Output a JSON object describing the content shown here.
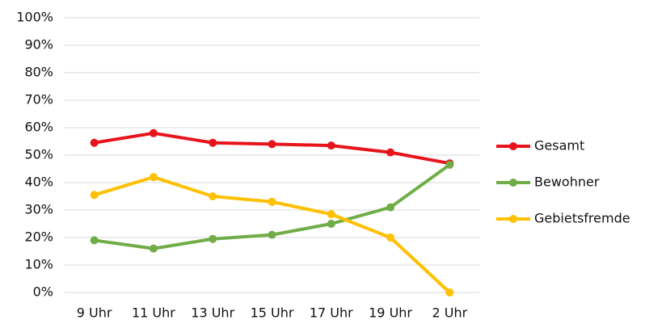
{
  "chart_data": {
    "type": "line",
    "categories": [
      "9 Uhr",
      "11 Uhr",
      "13 Uhr",
      "15 Uhr",
      "17 Uhr",
      "19 Uhr",
      "2 Uhr"
    ],
    "series": [
      {
        "name": "Gesamt",
        "color": "#e8141b",
        "values": [
          54.5,
          58,
          54.5,
          54,
          53.5,
          51,
          47
        ]
      },
      {
        "name": "Bewohner",
        "color": "#70ad47",
        "values": [
          19,
          16,
          19.5,
          21,
          25,
          31,
          46.5
        ]
      },
      {
        "name": "Gebietsfremde",
        "color": "#ffc000",
        "values": [
          35.5,
          42,
          35,
          33,
          28.5,
          20,
          0
        ]
      }
    ],
    "ylim": [
      0,
      100
    ],
    "yticks": [
      {
        "value": 0,
        "label": "0%"
      },
      {
        "value": 10,
        "label": "10%"
      },
      {
        "value": 20,
        "label": "20%"
      },
      {
        "value": 30,
        "label": "30%"
      },
      {
        "value": 40,
        "label": "40%"
      },
      {
        "value": 50,
        "label": "50%"
      },
      {
        "value": 60,
        "label": "60%"
      },
      {
        "value": 70,
        "label": "70%"
      },
      {
        "value": 80,
        "label": "80%"
      },
      {
        "value": 90,
        "label": "90%"
      },
      {
        "value": 100,
        "label": "100%"
      }
    ],
    "grid": true,
    "legend": "right"
  }
}
